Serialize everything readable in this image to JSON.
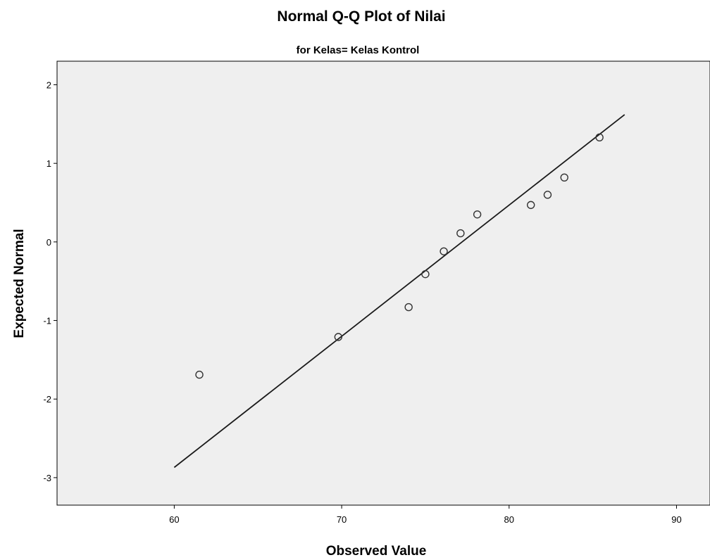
{
  "chart_data": {
    "type": "scatter",
    "title": "Normal Q-Q Plot of Nilai",
    "subtitle": "for Kelas= Kelas Kontrol",
    "xlabel": "Observed Value",
    "ylabel": "Expected Normal",
    "xlim": [
      53,
      92
    ],
    "ylim": [
      -3.35,
      2.3
    ],
    "xticks": [
      60,
      70,
      80,
      90
    ],
    "yticks": [
      2,
      1,
      0,
      -1,
      -2,
      -3
    ],
    "grid": false,
    "points": [
      {
        "x": 61.5,
        "y": -1.69
      },
      {
        "x": 69.8,
        "y": -1.21
      },
      {
        "x": 74.0,
        "y": -0.83
      },
      {
        "x": 75.0,
        "y": -0.41
      },
      {
        "x": 76.1,
        "y": -0.12
      },
      {
        "x": 77.1,
        "y": 0.11
      },
      {
        "x": 78.1,
        "y": 0.35
      },
      {
        "x": 81.3,
        "y": 0.47
      },
      {
        "x": 82.3,
        "y": 0.6
      },
      {
        "x": 83.3,
        "y": 0.82
      },
      {
        "x": 85.4,
        "y": 1.33
      }
    ],
    "reference_line": {
      "x": [
        60,
        86.9
      ],
      "y": [
        -2.87,
        1.62
      ]
    },
    "colors": {
      "plot_background": "#efefef",
      "marker": "#333333",
      "line": "#1a1a1a"
    }
  }
}
